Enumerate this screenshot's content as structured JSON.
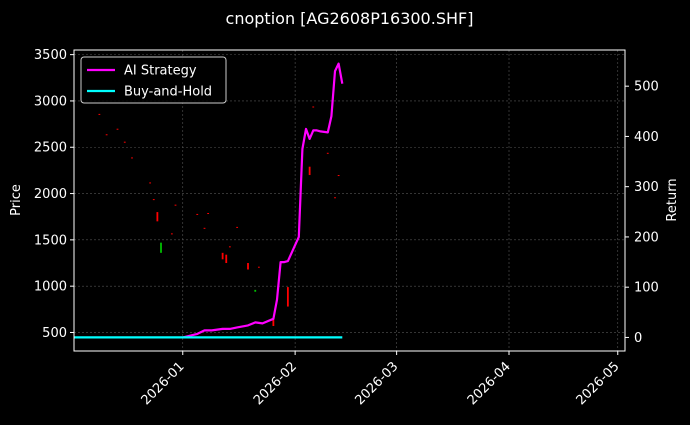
{
  "title": "cnoption [AG2608P16300.SHF]",
  "chart_data": {
    "type": "line",
    "title": "cnoption [AG2608P16300.SHF]",
    "xlabel": "",
    "ylabel_left": "Price",
    "ylabel_right": "Return",
    "xlim": [
      "2025-12-02",
      "2026-05-03"
    ],
    "ylim_left": [
      300,
      3550
    ],
    "ylim_right": [
      -27,
      572
    ],
    "x_ticks": [
      "2026-01",
      "2026-02",
      "2026-03",
      "2026-04",
      "2026-05"
    ],
    "y_ticks_left": [
      500,
      1000,
      1500,
      2000,
      2500,
      3000,
      3500
    ],
    "y_ticks_right": [
      0,
      100,
      200,
      300,
      400,
      500
    ],
    "grid": true,
    "legend_position": "top-left",
    "legend": [
      {
        "name": "AI Strategy",
        "color": "#ff00ff"
      },
      {
        "name": "Buy-and-Hold",
        "color": "#00ffff"
      }
    ],
    "series": [
      {
        "name": "AI Strategy",
        "axis": "right",
        "color": "#ff00ff",
        "x": [
          "2026-01-01",
          "2026-01-05",
          "2026-01-07",
          "2026-01-09",
          "2026-01-12",
          "2026-01-14",
          "2026-01-16",
          "2026-01-19",
          "2026-01-21",
          "2026-01-23",
          "2026-01-26",
          "2026-01-27",
          "2026-01-28",
          "2026-01-29",
          "2026-01-30",
          "2026-02-02",
          "2026-02-03",
          "2026-02-04",
          "2026-02-05",
          "2026-02-06",
          "2026-02-07",
          "2026-02-08",
          "2026-02-10",
          "2026-02-11",
          "2026-02-12",
          "2026-02-13",
          "2026-02-14"
        ],
        "values": [
          0,
          7,
          14,
          14,
          17,
          17,
          20,
          24,
          30,
          28,
          37,
          75,
          150,
          150,
          152,
          200,
          375,
          415,
          395,
          412,
          412,
          410,
          408,
          440,
          530,
          545,
          505
        ]
      },
      {
        "name": "Buy-and-Hold",
        "axis": "right",
        "color": "#00ffff",
        "x": [
          "2025-12-02",
          "2026-02-14"
        ],
        "values": [
          0,
          0
        ]
      }
    ],
    "candles": [
      {
        "x": "2025-12-09",
        "open": 2860,
        "close": 2850,
        "color": "#ff0000"
      },
      {
        "x": "2025-12-11",
        "open": 2640,
        "close": 2630,
        "color": "#ff0000"
      },
      {
        "x": "2025-12-14",
        "open": 2700,
        "close": 2690,
        "color": "#ff0000"
      },
      {
        "x": "2025-12-16",
        "open": 2560,
        "close": 2550,
        "color": "#ff0000"
      },
      {
        "x": "2025-12-18",
        "open": 2390,
        "close": 2380,
        "color": "#ff0000"
      },
      {
        "x": "2025-12-23",
        "open": 2120,
        "close": 2110,
        "color": "#ff0000"
      },
      {
        "x": "2025-12-24",
        "open": 1940,
        "close": 1930,
        "color": "#ff0000"
      },
      {
        "x": "2025-12-25",
        "open": 1800,
        "close": 1700,
        "color": "#ff0000"
      },
      {
        "x": "2025-12-26",
        "open": 1360,
        "close": 1470,
        "color": "#00c000"
      },
      {
        "x": "2025-12-29",
        "open": 1570,
        "close": 1560,
        "color": "#ff0000"
      },
      {
        "x": "2025-12-30",
        "open": 1880,
        "close": 1870,
        "color": "#ff0000"
      },
      {
        "x": "2026-01-05",
        "open": 1780,
        "close": 1770,
        "color": "#ff0000"
      },
      {
        "x": "2026-01-07",
        "open": 1630,
        "close": 1620,
        "color": "#ff0000"
      },
      {
        "x": "2026-01-08",
        "open": 1790,
        "close": 1780,
        "color": "#ff0000"
      },
      {
        "x": "2026-01-12",
        "open": 1360,
        "close": 1290,
        "color": "#ff0000"
      },
      {
        "x": "2026-01-13",
        "open": 1340,
        "close": 1250,
        "color": "#ff0000"
      },
      {
        "x": "2026-01-14",
        "open": 1430,
        "close": 1420,
        "color": "#ff0000"
      },
      {
        "x": "2026-01-16",
        "open": 1640,
        "close": 1630,
        "color": "#ff0000"
      },
      {
        "x": "2026-01-19",
        "open": 1250,
        "close": 1180,
        "color": "#ff0000"
      },
      {
        "x": "2026-01-21",
        "open": 940,
        "close": 960,
        "color": "#00c000"
      },
      {
        "x": "2026-01-22",
        "open": 1210,
        "close": 1200,
        "color": "#ff0000"
      },
      {
        "x": "2026-01-26",
        "open": 640,
        "close": 570,
        "color": "#ff0000"
      },
      {
        "x": "2026-01-30",
        "open": 990,
        "close": 780,
        "color": "#ff0000"
      },
      {
        "x": "2026-02-05",
        "open": 2290,
        "close": 2200,
        "color": "#ff0000"
      },
      {
        "x": "2026-02-06",
        "open": 2940,
        "close": 2930,
        "color": "#ff0000"
      },
      {
        "x": "2026-02-10",
        "open": 2440,
        "close": 2430,
        "color": "#ff0000"
      },
      {
        "x": "2026-02-12",
        "open": 1960,
        "close": 1950,
        "color": "#ff0000"
      },
      {
        "x": "2026-02-13",
        "open": 2200,
        "close": 2190,
        "color": "#ff0000"
      }
    ]
  }
}
